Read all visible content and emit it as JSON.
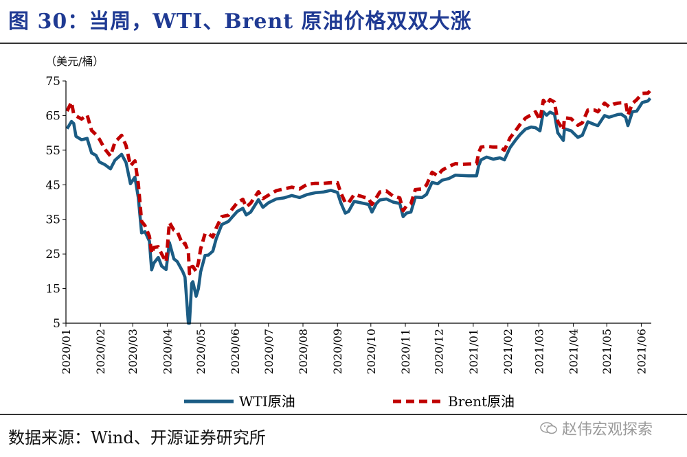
{
  "figure_title": "图 30：当周，WTI、Brent 原油价格双双大涨",
  "source_note": "数据来源：Wind、开源证券研究所",
  "watermark": "赵伟宏观探索",
  "colors": {
    "title": "#1f3a93",
    "wti": "#1b5c84",
    "brent": "#c00000"
  },
  "chart_data": {
    "type": "line",
    "title": "",
    "ylabel": "（美元/桶）",
    "xlabel": "",
    "ylim": [
      5,
      75
    ],
    "yticks": [
      5,
      15,
      25,
      35,
      45,
      55,
      65,
      75
    ],
    "xlim": [
      "2020-01-01",
      "2021-06-10"
    ],
    "xticks": [
      "2020/01",
      "2020/02",
      "2020/03",
      "2020/04",
      "2020/05",
      "2020/06",
      "2020/07",
      "2020/08",
      "2020/09",
      "2020/10",
      "2020/11",
      "2020/12",
      "2021/01",
      "2021/02",
      "2021/03",
      "2021/04",
      "2021/05",
      "2021/06"
    ],
    "grid": false,
    "legend_position": "bottom",
    "series": [
      {
        "name": "WTI原油",
        "style": "solid",
        "color": "#1b5c84",
        "points": [
          [
            "2020-01-02",
            61.2
          ],
          [
            "2020-01-06",
            63.3
          ],
          [
            "2020-01-08",
            62.7
          ],
          [
            "2020-01-10",
            59.0
          ],
          [
            "2020-01-15",
            58.0
          ],
          [
            "2020-01-20",
            58.4
          ],
          [
            "2020-01-24",
            54.2
          ],
          [
            "2020-01-28",
            53.5
          ],
          [
            "2020-01-31",
            51.6
          ],
          [
            "2020-02-05",
            50.8
          ],
          [
            "2020-02-10",
            49.6
          ],
          [
            "2020-02-14",
            52.1
          ],
          [
            "2020-02-20",
            53.8
          ],
          [
            "2020-02-24",
            51.4
          ],
          [
            "2020-02-28",
            45.3
          ],
          [
            "2020-03-03",
            47.2
          ],
          [
            "2020-03-06",
            41.3
          ],
          [
            "2020-03-09",
            31.1
          ],
          [
            "2020-03-12",
            31.5
          ],
          [
            "2020-03-16",
            28.7
          ],
          [
            "2020-03-18",
            20.4
          ],
          [
            "2020-03-20",
            22.4
          ],
          [
            "2020-03-24",
            24.0
          ],
          [
            "2020-03-27",
            21.5
          ],
          [
            "2020-03-31",
            20.5
          ],
          [
            "2020-04-03",
            28.3
          ],
          [
            "2020-04-07",
            23.6
          ],
          [
            "2020-04-10",
            22.8
          ],
          [
            "2020-04-15",
            19.9
          ],
          [
            "2020-04-17",
            18.3
          ],
          [
            "2020-04-20",
            5.0
          ],
          [
            "2020-04-21",
            5.0
          ],
          [
            "2020-04-23",
            16.5
          ],
          [
            "2020-04-24",
            17.0
          ],
          [
            "2020-04-27",
            12.8
          ],
          [
            "2020-04-29",
            15.0
          ],
          [
            "2020-05-01",
            19.8
          ],
          [
            "2020-05-05",
            24.6
          ],
          [
            "2020-05-08",
            24.7
          ],
          [
            "2020-05-12",
            25.8
          ],
          [
            "2020-05-15",
            29.4
          ],
          [
            "2020-05-20",
            33.5
          ],
          [
            "2020-05-26",
            34.4
          ],
          [
            "2020-05-29",
            35.5
          ],
          [
            "2020-06-03",
            37.3
          ],
          [
            "2020-06-08",
            38.2
          ],
          [
            "2020-06-11",
            36.3
          ],
          [
            "2020-06-15",
            37.1
          ],
          [
            "2020-06-22",
            40.7
          ],
          [
            "2020-06-26",
            38.5
          ],
          [
            "2020-07-01",
            39.8
          ],
          [
            "2020-07-08",
            40.9
          ],
          [
            "2020-07-15",
            41.2
          ],
          [
            "2020-07-22",
            41.9
          ],
          [
            "2020-07-29",
            41.3
          ],
          [
            "2020-08-05",
            42.2
          ],
          [
            "2020-08-12",
            42.7
          ],
          [
            "2020-08-19",
            42.9
          ],
          [
            "2020-08-26",
            43.4
          ],
          [
            "2020-09-01",
            42.8
          ],
          [
            "2020-09-04",
            39.8
          ],
          [
            "2020-09-08",
            36.8
          ],
          [
            "2020-09-11",
            37.3
          ],
          [
            "2020-09-16",
            40.2
          ],
          [
            "2020-09-22",
            39.8
          ],
          [
            "2020-09-29",
            39.3
          ],
          [
            "2020-10-02",
            37.1
          ],
          [
            "2020-10-06",
            39.6
          ],
          [
            "2020-10-09",
            40.6
          ],
          [
            "2020-10-15",
            40.9
          ],
          [
            "2020-10-21",
            40.0
          ],
          [
            "2020-10-27",
            39.6
          ],
          [
            "2020-10-30",
            35.8
          ],
          [
            "2020-11-02",
            36.8
          ],
          [
            "2020-11-06",
            37.1
          ],
          [
            "2020-11-10",
            41.4
          ],
          [
            "2020-11-16",
            41.3
          ],
          [
            "2020-11-20",
            42.2
          ],
          [
            "2020-11-25",
            45.7
          ],
          [
            "2020-11-30",
            45.3
          ],
          [
            "2020-12-04",
            46.3
          ],
          [
            "2020-12-10",
            46.8
          ],
          [
            "2020-12-16",
            47.8
          ],
          [
            "2020-12-21",
            47.7
          ],
          [
            "2020-12-28",
            47.6
          ],
          [
            "2021-01-04",
            47.6
          ],
          [
            "2021-01-06",
            50.6
          ],
          [
            "2021-01-08",
            52.2
          ],
          [
            "2021-01-13",
            53.0
          ],
          [
            "2021-01-19",
            52.4
          ],
          [
            "2021-01-25",
            52.8
          ],
          [
            "2021-01-29",
            52.2
          ],
          [
            "2021-02-03",
            55.7
          ],
          [
            "2021-02-08",
            57.9
          ],
          [
            "2021-02-12",
            59.5
          ],
          [
            "2021-02-17",
            61.1
          ],
          [
            "2021-02-22",
            61.7
          ],
          [
            "2021-02-26",
            61.5
          ],
          [
            "2021-03-02",
            60.6
          ],
          [
            "2021-03-05",
            66.1
          ],
          [
            "2021-03-08",
            65.1
          ],
          [
            "2021-03-11",
            66.0
          ],
          [
            "2021-03-15",
            65.4
          ],
          [
            "2021-03-18",
            60.0
          ],
          [
            "2021-03-23",
            57.8
          ],
          [
            "2021-03-24",
            61.2
          ],
          [
            "2021-03-30",
            60.6
          ],
          [
            "2021-04-05",
            58.7
          ],
          [
            "2021-04-09",
            59.3
          ],
          [
            "2021-04-14",
            63.2
          ],
          [
            "2021-04-20",
            62.4
          ],
          [
            "2021-04-23",
            62.1
          ],
          [
            "2021-04-29",
            65.0
          ],
          [
            "2021-05-03",
            64.5
          ],
          [
            "2021-05-07",
            64.9
          ],
          [
            "2021-05-11",
            65.3
          ],
          [
            "2021-05-14",
            65.4
          ],
          [
            "2021-05-18",
            64.5
          ],
          [
            "2021-05-20",
            62.1
          ],
          [
            "2021-05-24",
            66.1
          ],
          [
            "2021-05-28",
            66.3
          ],
          [
            "2021-06-02",
            68.8
          ],
          [
            "2021-06-07",
            69.2
          ],
          [
            "2021-06-09",
            70.0
          ]
        ]
      },
      {
        "name": "Brent原油",
        "style": "dashed",
        "color": "#c00000",
        "points": [
          [
            "2020-01-02",
            66.3
          ],
          [
            "2020-01-06",
            68.9
          ],
          [
            "2020-01-08",
            65.4
          ],
          [
            "2020-01-10",
            64.9
          ],
          [
            "2020-01-15",
            64.0
          ],
          [
            "2020-01-20",
            65.2
          ],
          [
            "2020-01-24",
            60.7
          ],
          [
            "2020-01-28",
            59.5
          ],
          [
            "2020-01-31",
            58.2
          ],
          [
            "2020-02-05",
            55.3
          ],
          [
            "2020-02-10",
            53.3
          ],
          [
            "2020-02-14",
            57.3
          ],
          [
            "2020-02-20",
            59.3
          ],
          [
            "2020-02-24",
            56.3
          ],
          [
            "2020-02-28",
            50.5
          ],
          [
            "2020-03-03",
            51.9
          ],
          [
            "2020-03-06",
            45.3
          ],
          [
            "2020-03-09",
            34.4
          ],
          [
            "2020-03-12",
            33.2
          ],
          [
            "2020-03-16",
            30.1
          ],
          [
            "2020-03-18",
            25.1
          ],
          [
            "2020-03-20",
            26.9
          ],
          [
            "2020-03-24",
            27.1
          ],
          [
            "2020-03-27",
            25.0
          ],
          [
            "2020-03-31",
            22.7
          ],
          [
            "2020-04-03",
            34.1
          ],
          [
            "2020-04-07",
            31.9
          ],
          [
            "2020-04-10",
            31.5
          ],
          [
            "2020-04-15",
            27.7
          ],
          [
            "2020-04-17",
            28.1
          ],
          [
            "2020-04-20",
            25.6
          ],
          [
            "2020-04-21",
            19.3
          ],
          [
            "2020-04-23",
            21.3
          ],
          [
            "2020-04-24",
            21.4
          ],
          [
            "2020-04-27",
            20.0
          ],
          [
            "2020-04-29",
            22.5
          ],
          [
            "2020-05-01",
            26.4
          ],
          [
            "2020-05-05",
            30.9
          ],
          [
            "2020-05-08",
            30.9
          ],
          [
            "2020-05-12",
            29.9
          ],
          [
            "2020-05-15",
            32.5
          ],
          [
            "2020-05-20",
            35.8
          ],
          [
            "2020-05-26",
            36.2
          ],
          [
            "2020-05-29",
            37.8
          ],
          [
            "2020-06-03",
            39.8
          ],
          [
            "2020-06-08",
            40.8
          ],
          [
            "2020-06-11",
            38.6
          ],
          [
            "2020-06-15",
            39.7
          ],
          [
            "2020-06-22",
            43.0
          ],
          [
            "2020-06-26",
            41.0
          ],
          [
            "2020-07-01",
            42.0
          ],
          [
            "2020-07-08",
            43.3
          ],
          [
            "2020-07-15",
            43.8
          ],
          [
            "2020-07-22",
            44.3
          ],
          [
            "2020-07-29",
            43.8
          ],
          [
            "2020-08-05",
            45.2
          ],
          [
            "2020-08-12",
            45.4
          ],
          [
            "2020-08-19",
            45.4
          ],
          [
            "2020-08-26",
            45.6
          ],
          [
            "2020-09-01",
            45.6
          ],
          [
            "2020-09-04",
            42.7
          ],
          [
            "2020-09-08",
            39.8
          ],
          [
            "2020-09-11",
            39.8
          ],
          [
            "2020-09-16",
            42.2
          ],
          [
            "2020-09-22",
            41.7
          ],
          [
            "2020-09-29",
            41.0
          ],
          [
            "2020-10-02",
            39.3
          ],
          [
            "2020-10-06",
            41.3
          ],
          [
            "2020-10-09",
            42.9
          ],
          [
            "2020-10-15",
            43.2
          ],
          [
            "2020-10-21",
            41.7
          ],
          [
            "2020-10-27",
            41.2
          ],
          [
            "2020-10-30",
            37.5
          ],
          [
            "2020-11-02",
            38.9
          ],
          [
            "2020-11-06",
            39.5
          ],
          [
            "2020-11-10",
            43.6
          ],
          [
            "2020-11-16",
            43.8
          ],
          [
            "2020-11-20",
            44.9
          ],
          [
            "2020-11-25",
            48.6
          ],
          [
            "2020-11-30",
            47.6
          ],
          [
            "2020-12-04",
            49.2
          ],
          [
            "2020-12-10",
            50.3
          ],
          [
            "2020-12-16",
            51.1
          ],
          [
            "2020-12-21",
            50.9
          ],
          [
            "2020-12-28",
            51.0
          ],
          [
            "2021-01-04",
            51.1
          ],
          [
            "2021-01-06",
            54.3
          ],
          [
            "2021-01-08",
            55.9
          ],
          [
            "2021-01-13",
            56.1
          ],
          [
            "2021-01-19",
            55.9
          ],
          [
            "2021-01-25",
            55.9
          ],
          [
            "2021-01-29",
            55.0
          ],
          [
            "2021-02-03",
            58.5
          ],
          [
            "2021-02-08",
            60.6
          ],
          [
            "2021-02-12",
            62.4
          ],
          [
            "2021-02-17",
            64.3
          ],
          [
            "2021-02-22",
            65.2
          ],
          [
            "2021-02-26",
            66.1
          ],
          [
            "2021-03-02",
            63.7
          ],
          [
            "2021-03-05",
            69.4
          ],
          [
            "2021-03-08",
            68.2
          ],
          [
            "2021-03-11",
            69.6
          ],
          [
            "2021-03-15",
            68.9
          ],
          [
            "2021-03-18",
            63.3
          ],
          [
            "2021-03-23",
            60.8
          ],
          [
            "2021-03-24",
            64.4
          ],
          [
            "2021-03-30",
            64.1
          ],
          [
            "2021-04-05",
            62.2
          ],
          [
            "2021-04-09",
            62.9
          ],
          [
            "2021-04-14",
            66.6
          ],
          [
            "2021-04-20",
            66.6
          ],
          [
            "2021-04-23",
            66.1
          ],
          [
            "2021-04-29",
            68.6
          ],
          [
            "2021-05-03",
            67.6
          ],
          [
            "2021-05-07",
            68.3
          ],
          [
            "2021-05-11",
            68.6
          ],
          [
            "2021-05-14",
            68.7
          ],
          [
            "2021-05-18",
            68.7
          ],
          [
            "2021-05-20",
            65.1
          ],
          [
            "2021-05-24",
            68.5
          ],
          [
            "2021-05-28",
            69.6
          ],
          [
            "2021-06-02",
            71.4
          ],
          [
            "2021-06-07",
            71.5
          ],
          [
            "2021-06-09",
            72.2
          ]
        ]
      }
    ]
  }
}
